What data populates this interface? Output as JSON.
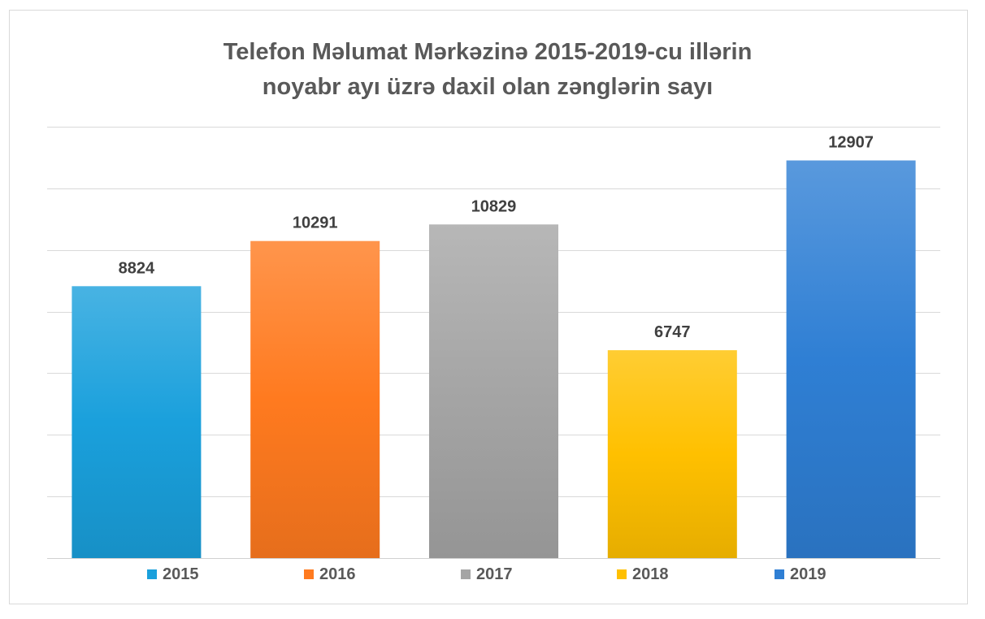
{
  "chart_data": {
    "type": "bar",
    "title_lines": [
      "Telefon Məlumat Mərkəzinə 2015-2019-cu illərin",
      "noyabr ayı üzrə daxil olan zənglərin sayı"
    ],
    "categories": [
      "2015",
      "2016",
      "2017",
      "2018",
      "2019"
    ],
    "values": [
      8824,
      10291,
      10829,
      6747,
      12907
    ],
    "data_labels": [
      "8824",
      "10291",
      "10829",
      "6747",
      "12907"
    ],
    "colors": [
      "#1aa0dc",
      "#ff7a1f",
      "#a5a5a5",
      "#ffc000",
      "#2f7fd4"
    ],
    "ylim": [
      0,
      14000
    ],
    "grid": true,
    "y_tick_labels_shown": false,
    "legend_position": "bottom",
    "xlabel": "",
    "ylabel": ""
  }
}
